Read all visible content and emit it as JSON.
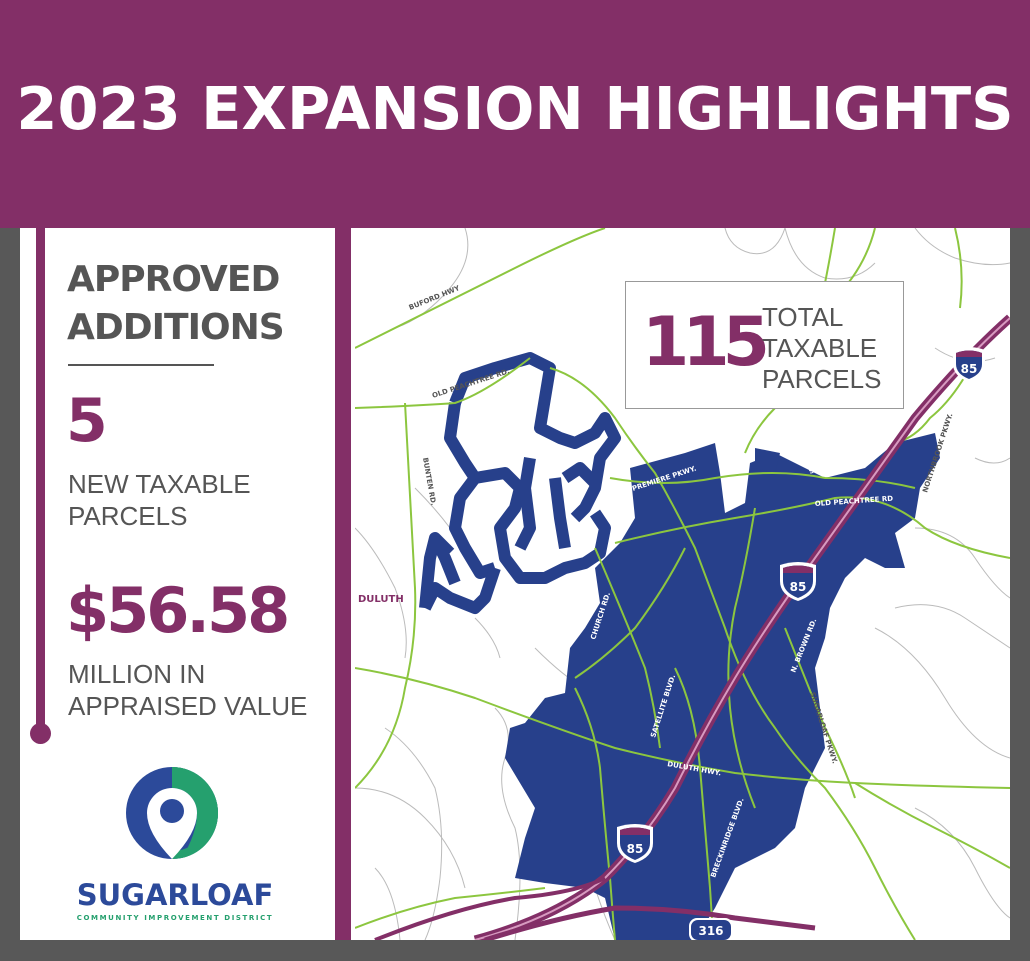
{
  "header": {
    "title": "2023 EXPANSION HIGHLIGHTS"
  },
  "approved": {
    "title_line1": "APPROVED",
    "title_line2": "ADDITIONS",
    "new_parcels_value": "5",
    "new_parcels_label_line1": "NEW TAXABLE",
    "new_parcels_label_line2": "PARCELS",
    "value_amount": "$56.58",
    "value_label_line1": "MILLION IN",
    "value_label_line2": "APPRAISED VALUE"
  },
  "logo": {
    "name": "SUGARLOAF",
    "subtitle": "COMMUNITY IMPROVEMENT DISTRICT",
    "icon": "location-pin-icon"
  },
  "map": {
    "total_parcels_value": "115",
    "total_parcels_label_line1": "TOTAL",
    "total_parcels_label_line2": "TAXABLE",
    "total_parcels_label_line3": "PARCELS",
    "city_label": "DULUTH",
    "road_labels": {
      "buford_hwy": "BUFORD HWY",
      "old_peachtree_rd_north": "OLD PEACHTREE RD.",
      "bunten_rd": "BUNTEN RD.",
      "premiere_pkwy": "PREMIERE PKWY.",
      "satellite_blvd_north": "SATELLITE BLVD.",
      "old_peachtree_rd_east": "OLD PEACHTREE RD",
      "northbrook_pkwy": "NORTHBROOK PKWY.",
      "church_rd": "CHURCH RD.",
      "satellite_blvd": "SATELLITE BLVD.",
      "n_brown_rd": "N. BROWN RD.",
      "sugarloaf_pkwy": "SUGARLOAF PKWY.",
      "duluth_hwy": "DULUTH HWY.",
      "breckinridge_blvd": "BRECKINRIDGE BLVD."
    },
    "shields": {
      "i85_top": "85",
      "i85_mid": "85",
      "i85_bottom": "85",
      "sr316": "316"
    },
    "colors": {
      "district": "#27408b",
      "interstate": "#832f67",
      "major_road": "#8cc63f",
      "minor_road": "#bbbbbb"
    }
  }
}
